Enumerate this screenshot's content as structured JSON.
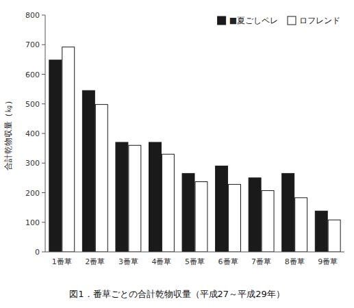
{
  "chart_data": {
    "type": "bar",
    "title": "図1．番草ごとの合計乾物収量（平成27～平成29年）",
    "ylabel": "合計乾物収量（㎏）",
    "categories": [
      "1番草",
      "2番草",
      "3番草",
      "4番草",
      "5番草",
      "6番草",
      "7番草",
      "8番草",
      "9番草"
    ],
    "series": [
      {
        "name": "■夏ごしペレ",
        "color": "#1a1a1a",
        "values": [
          648,
          545,
          370,
          370,
          265,
          290,
          250,
          265,
          138
        ]
      },
      {
        "name": "ロフレンド",
        "color": "#ffffff",
        "values": [
          692,
          498,
          360,
          330,
          237,
          228,
          207,
          183,
          108
        ]
      }
    ],
    "ylim": [
      0,
      800
    ],
    "yticks": [
      0,
      100,
      200,
      300,
      400,
      500,
      600,
      700,
      800
    ],
    "grid": false,
    "legend": "upper right"
  }
}
